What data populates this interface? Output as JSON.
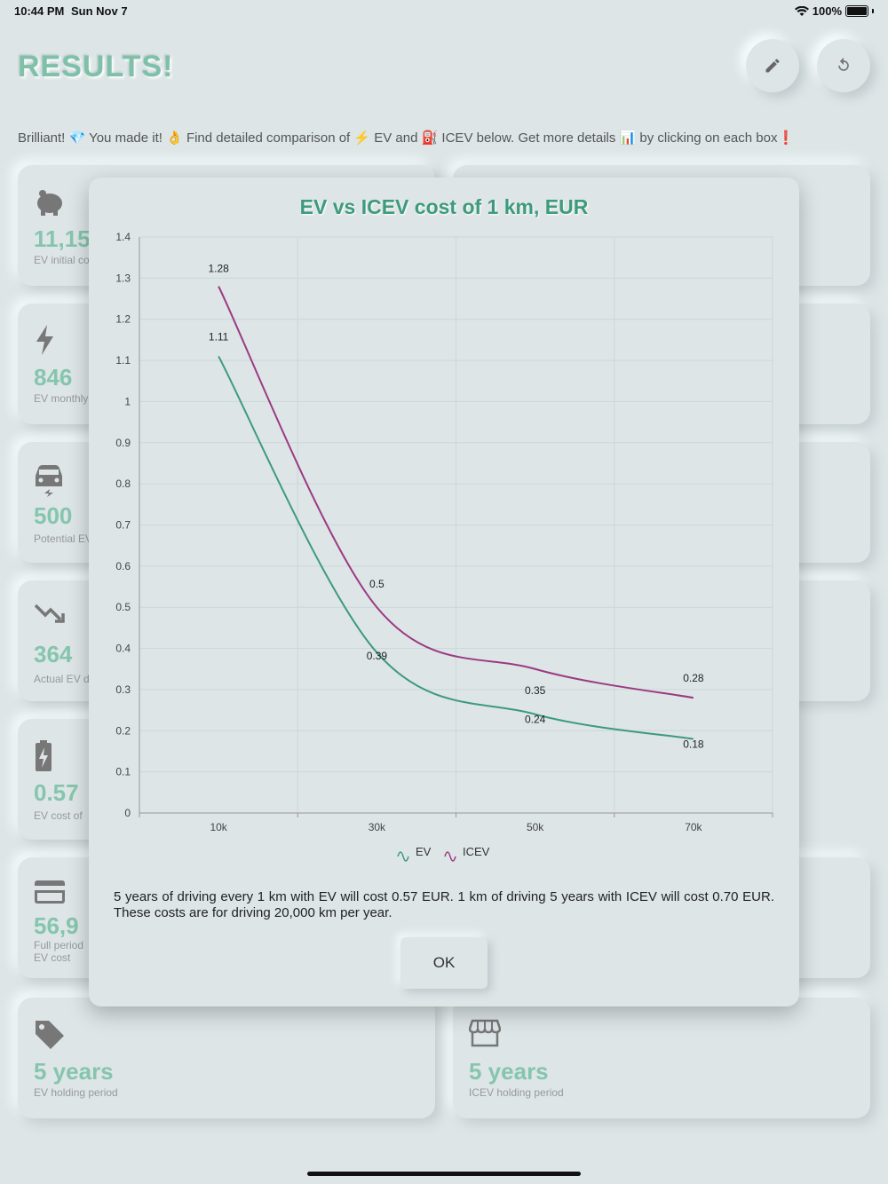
{
  "status": {
    "time": "10:44 PM",
    "date": "Sun Nov 7",
    "battery": "100%"
  },
  "page": {
    "title": "RESULTS!",
    "intro": "Brilliant! 💎 You made it! 👌 Find detailed comparison of ⚡ EV and ⛽ ICEV below. Get more details 📊 by clicking on each box❗"
  },
  "cards": [
    {
      "value": "11,15",
      "label": "EV initial co",
      "icon": "piggy-bank-icon"
    },
    {
      "value": "846",
      "label": "EV monthly",
      "icon": "lightning-icon"
    },
    {
      "value": "500",
      "label": "Potential EV",
      "icon": "car-charging-icon"
    },
    {
      "value": "364",
      "label": "Actual EV d",
      "icon": "trend-down-icon"
    },
    {
      "value": "0.57",
      "label": "EV cost of",
      "icon": "battery-charging-icon"
    },
    {
      "value": "56,9",
      "label": "Full period",
      "label2": "EV cost",
      "icon": "credit-card-icon"
    },
    {
      "value": "5 years",
      "label": "EV holding period",
      "icon": "tag-icon"
    },
    {
      "value": "5 years",
      "label": "ICEV holding period",
      "icon": "store-icon"
    }
  ],
  "modal": {
    "description": "5 years of driving every 1 km with EV will cost 0.57 EUR. 1 km of driving 5 years with ICEV will cost 0.70 EUR. These costs are for driving 20,000 km per year.",
    "ok_label": "OK"
  },
  "chart_data": {
    "type": "line",
    "title": "EV vs ICEV cost of 1 km, EUR",
    "categories": [
      "10k",
      "30k",
      "50k",
      "70k"
    ],
    "series": [
      {
        "name": "EV",
        "values": [
          1.11,
          0.39,
          0.24,
          0.18
        ],
        "color": "#3e9a7a"
      },
      {
        "name": "ICEV",
        "values": [
          1.28,
          0.5,
          0.35,
          0.28
        ],
        "color": "#9b3a82"
      }
    ],
    "ylim": [
      0,
      1.4
    ],
    "yticks": [
      "0",
      "0.1",
      "0.2",
      "0.3",
      "0.4",
      "0.5",
      "0.6",
      "0.7",
      "0.8",
      "0.9",
      "1",
      "1.1",
      "1.2",
      "1.3",
      "1.4"
    ],
    "grid": true,
    "legend": "bottom-center"
  }
}
